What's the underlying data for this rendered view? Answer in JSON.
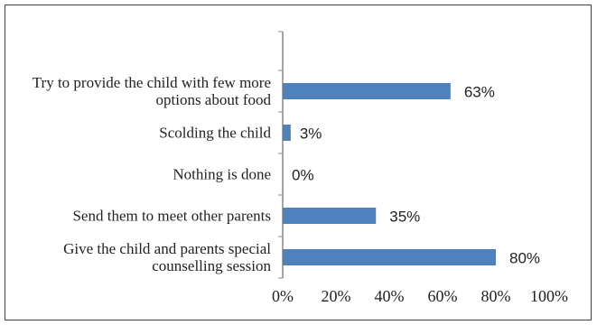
{
  "chart_data": {
    "type": "bar",
    "orientation": "horizontal",
    "categories": [
      "Try to provide the child with few more options about food",
      "Scolding the child",
      "Nothing is done",
      "Send them to meet other parents",
      "Give the child and parents special counselling session"
    ],
    "values": [
      63,
      3,
      0,
      35,
      80
    ],
    "value_labels": [
      "63%",
      "3%",
      "0%",
      "35%",
      "80%"
    ],
    "color": "#4f81bd",
    "xlim": [
      0,
      100
    ],
    "xticks": [
      {
        "value": 0,
        "label": "0%"
      },
      {
        "value": 20,
        "label": "20%"
      },
      {
        "value": 40,
        "label": "40%"
      },
      {
        "value": 60,
        "label": "60%"
      },
      {
        "value": 80,
        "label": "80%"
      },
      {
        "value": 100,
        "label": "100%"
      }
    ],
    "grid": false
  }
}
